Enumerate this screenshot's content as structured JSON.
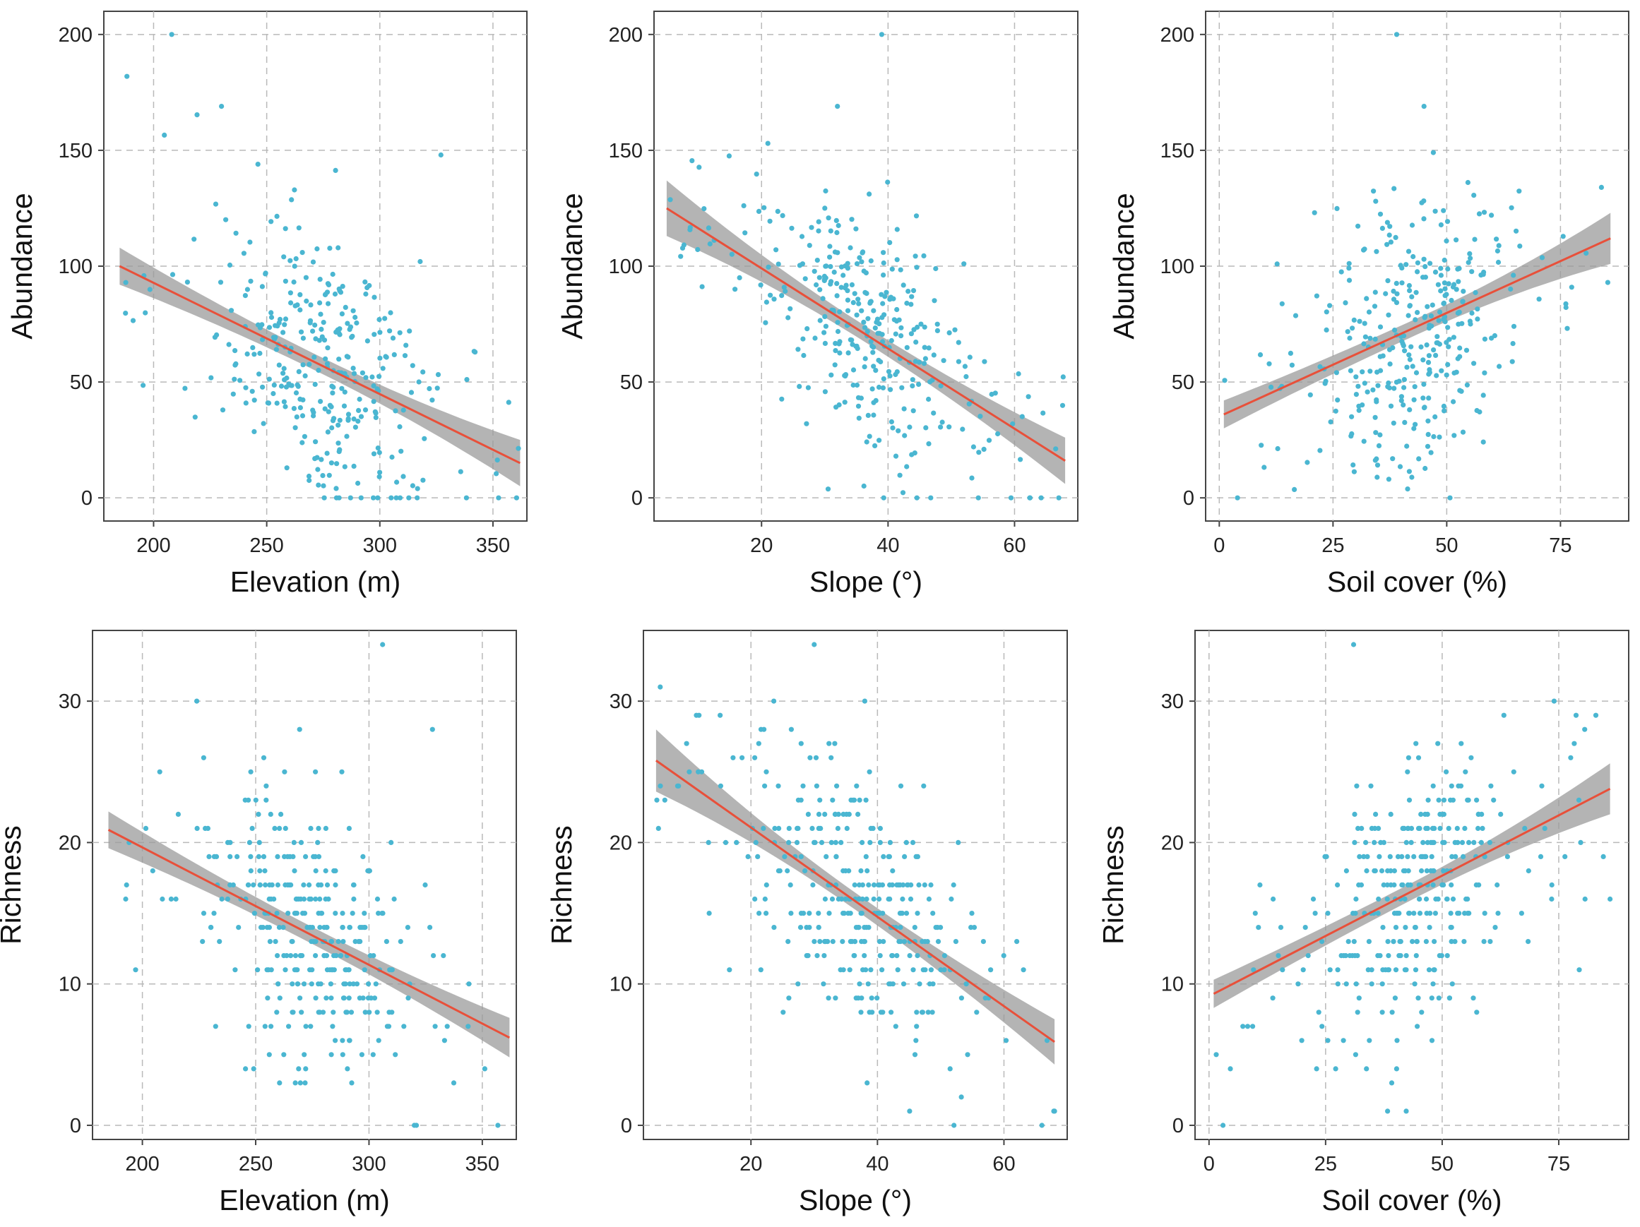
{
  "colors": {
    "point": "#4ab6d1",
    "line": "#e8503a",
    "band": "#9b9b9b"
  },
  "chart_data": [
    {
      "type": "scatter",
      "ylabel": "Abundance",
      "xlabel": "Elevation (m)",
      "xlim": [
        178,
        365
      ],
      "ylim": [
        -10,
        210
      ],
      "xticks": [
        200,
        250,
        300,
        350
      ],
      "yticks": [
        0,
        50,
        100,
        150,
        200
      ],
      "x_range": [
        185,
        362
      ],
      "y_range": [
        0,
        200
      ],
      "fit": {
        "x": [
          185,
          362
        ],
        "y": [
          100,
          15
        ],
        "ci_start": 8,
        "ci_end": 10,
        "ci_min": 3.5
      },
      "points_seed": 11,
      "points_n": 330,
      "y_scale": 30,
      "extremes": [
        [
          208,
          200
        ],
        [
          230,
          169
        ],
        [
          327,
          148
        ],
        [
          305,
          0
        ]
      ]
    },
    {
      "type": "scatter",
      "ylabel": "Abundance",
      "xlabel": "Slope (°)",
      "xlim": [
        3,
        70
      ],
      "ylim": [
        -10,
        210
      ],
      "xticks": [
        20,
        40,
        60
      ],
      "yticks": [
        0,
        50,
        100,
        150,
        200
      ],
      "x_range": [
        5,
        68
      ],
      "y_range": [
        0,
        200
      ],
      "fit": {
        "x": [
          5,
          68
        ],
        "y": [
          125,
          16
        ],
        "ci_start": 12,
        "ci_end": 10,
        "ci_min": 3.5
      },
      "points_seed": 23,
      "points_n": 330,
      "y_scale": 26,
      "extremes": [
        [
          39,
          200
        ],
        [
          32,
          169
        ],
        [
          21,
          153
        ],
        [
          67,
          0
        ]
      ]
    },
    {
      "type": "scatter",
      "ylabel": "Abundance",
      "xlabel": "Soil cover (%)",
      "xlim": [
        -3,
        90
      ],
      "ylim": [
        -10,
        210
      ],
      "xticks": [
        0,
        25,
        50,
        75
      ],
      "yticks": [
        0,
        50,
        100,
        150,
        200
      ],
      "x_range": [
        1,
        86
      ],
      "y_range": [
        0,
        200
      ],
      "fit": {
        "x": [
          1,
          86
        ],
        "y": [
          36,
          112
        ],
        "ci_start": 6,
        "ci_end": 11,
        "ci_min": 3.5
      },
      "points_seed": 37,
      "points_n": 330,
      "y_scale": 30,
      "extremes": [
        [
          39,
          200
        ],
        [
          45,
          169
        ],
        [
          84,
          134
        ],
        [
          4,
          0
        ]
      ]
    },
    {
      "type": "scatter",
      "ylabel": "Richness",
      "xlabel": "Elevation (m)",
      "xlim": [
        178,
        365
      ],
      "ylim": [
        -1,
        35
      ],
      "xticks": [
        200,
        250,
        300,
        350
      ],
      "yticks": [
        0,
        10,
        20,
        30
      ],
      "x_range": [
        185,
        362
      ],
      "y_range": [
        0,
        34
      ],
      "fit": {
        "x": [
          185,
          362
        ],
        "y": [
          20.9,
          6.2
        ],
        "ci_start": 1.3,
        "ci_end": 1.4,
        "ci_min": 0.6
      },
      "points_seed": 53,
      "points_n": 330,
      "y_scale": 5,
      "integer": true,
      "extremes": [
        [
          306,
          34
        ],
        [
          224,
          30
        ],
        [
          328,
          28
        ],
        [
          320,
          0
        ]
      ]
    },
    {
      "type": "scatter",
      "ylabel": "Richness",
      "xlabel": "Slope (°)",
      "xlim": [
        3,
        70
      ],
      "ylim": [
        -1,
        35
      ],
      "xticks": [
        20,
        40,
        60
      ],
      "yticks": [
        0,
        10,
        20,
        30
      ],
      "x_range": [
        5,
        68
      ],
      "y_range": [
        0,
        34
      ],
      "fit": {
        "x": [
          5,
          68
        ],
        "y": [
          25.8,
          5.9
        ],
        "ci_start": 2.2,
        "ci_end": 1.6,
        "ci_min": 0.6
      },
      "points_seed": 71,
      "points_n": 330,
      "y_scale": 4.5,
      "integer": true,
      "extremes": [
        [
          30,
          34
        ],
        [
          38,
          30
        ],
        [
          68,
          1
        ],
        [
          66,
          0
        ]
      ]
    },
    {
      "type": "scatter",
      "ylabel": "Richness",
      "xlabel": "Soil cover (%)",
      "xlim": [
        -3,
        90
      ],
      "ylim": [
        -1,
        35
      ],
      "xticks": [
        0,
        25,
        50,
        75
      ],
      "yticks": [
        0,
        10,
        20,
        30
      ],
      "x_range": [
        1,
        86
      ],
      "y_range": [
        0,
        34
      ],
      "fit": {
        "x": [
          1,
          86
        ],
        "y": [
          9.3,
          23.8
        ],
        "ci_start": 1.0,
        "ci_end": 1.8,
        "ci_min": 0.6
      },
      "points_seed": 89,
      "points_n": 330,
      "y_scale": 5,
      "integer": true,
      "extremes": [
        [
          31,
          34
        ],
        [
          74,
          30
        ],
        [
          86,
          16
        ],
        [
          3,
          0
        ]
      ]
    }
  ]
}
